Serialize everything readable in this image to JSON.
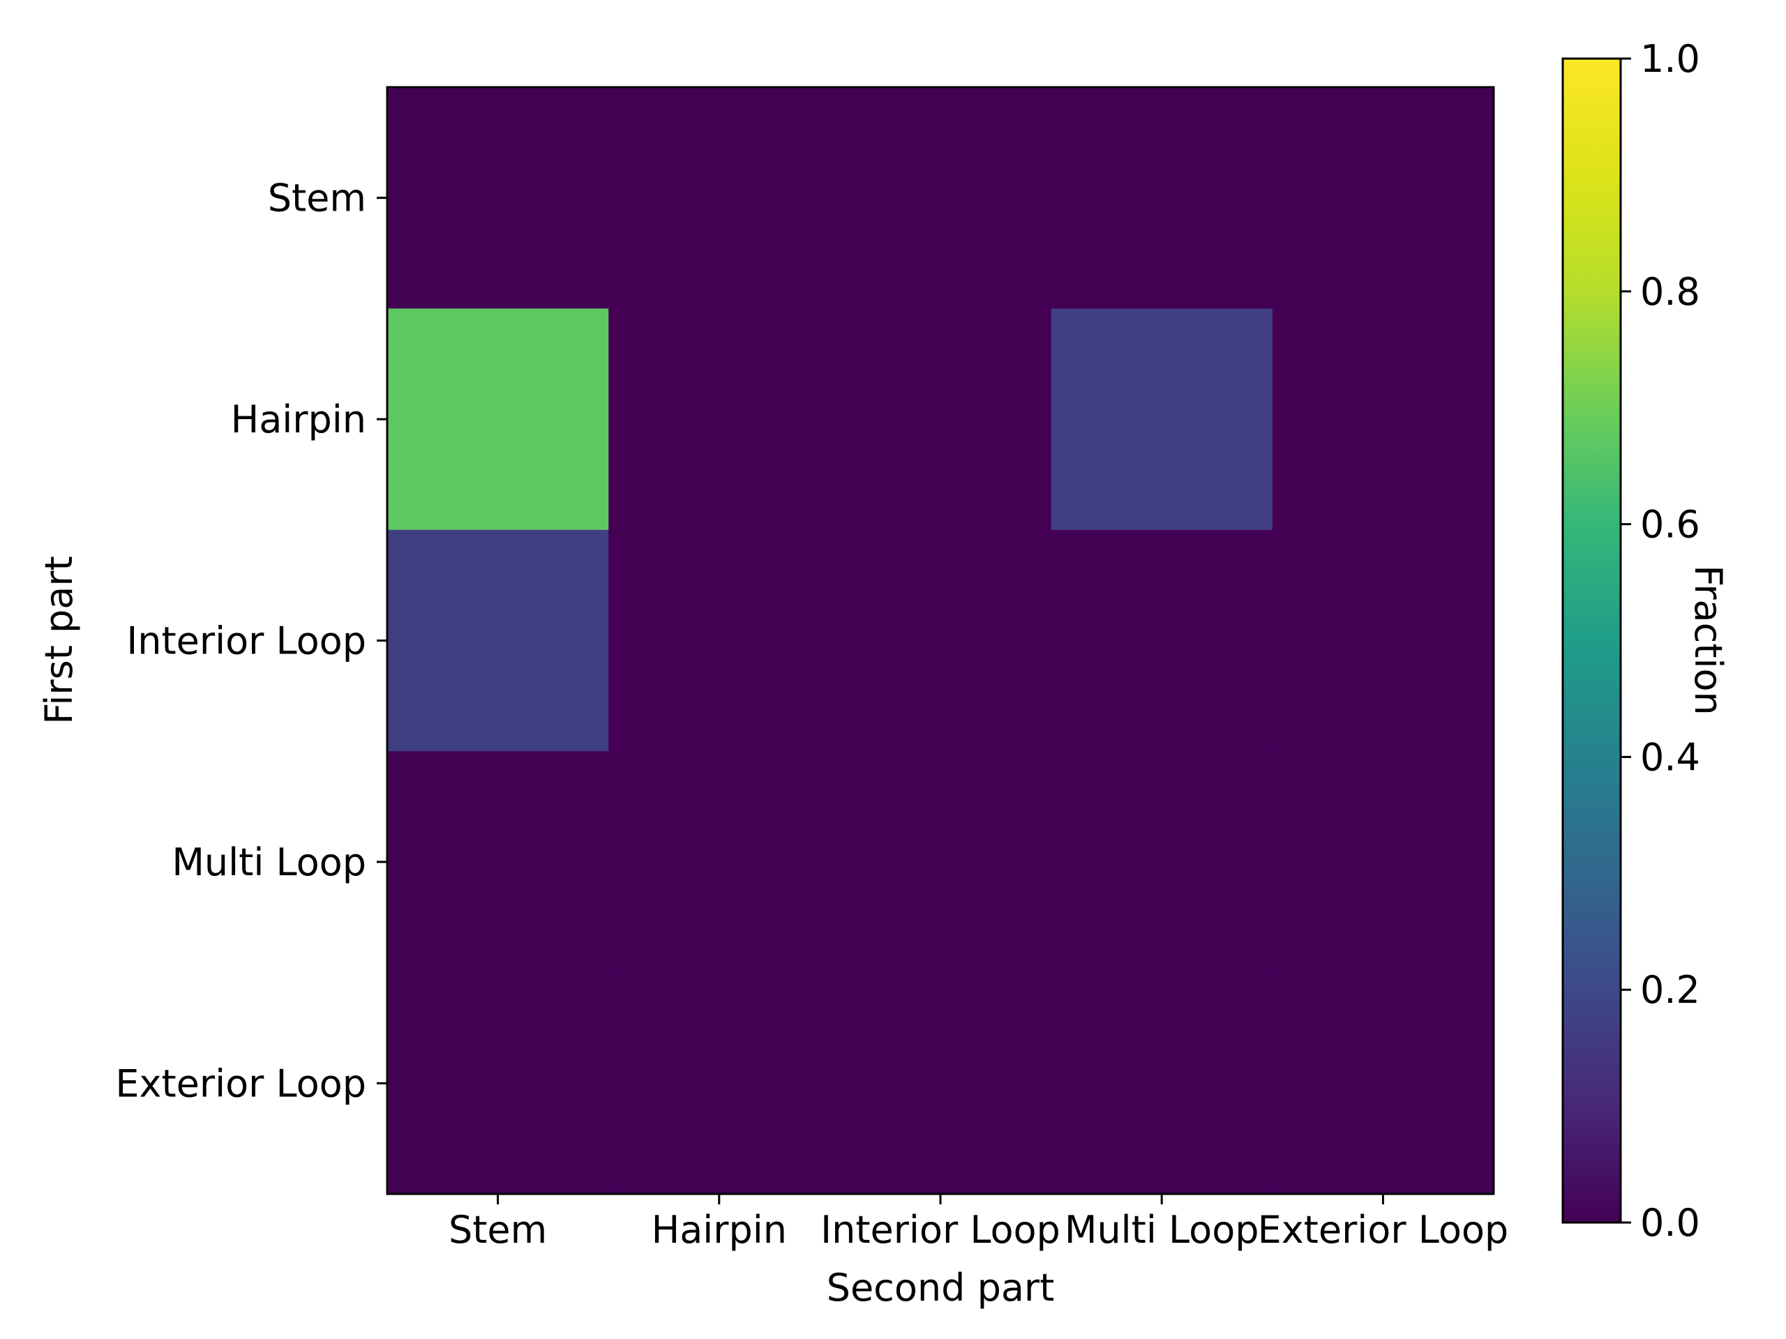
{
  "chart_data": {
    "type": "heatmap",
    "xlabel": "Second part",
    "ylabel": "First part",
    "x_categories": [
      "Stem",
      "Hairpin",
      "Interior Loop",
      "Multi Loop",
      "Exterior Loop"
    ],
    "y_categories": [
      "Stem",
      "Hairpin",
      "Interior Loop",
      "Multi Loop",
      "Exterior Loop"
    ],
    "values": [
      [
        0.0,
        0.0,
        0.0,
        0.0,
        0.0
      ],
      [
        0.67,
        0.0,
        0.0,
        0.17,
        0.0
      ],
      [
        0.17,
        0.0,
        0.0,
        0.0,
        0.0
      ],
      [
        0.0,
        0.0,
        0.0,
        0.0,
        0.0
      ],
      [
        0.0,
        0.0,
        0.0,
        0.0,
        0.0
      ]
    ],
    "colormap": "viridis",
    "colorbar": {
      "label": "Fraction",
      "range": [
        0.0,
        1.0
      ],
      "ticks": [
        "0.0",
        "0.2",
        "0.4",
        "0.6",
        "0.8",
        "1.0"
      ]
    }
  }
}
